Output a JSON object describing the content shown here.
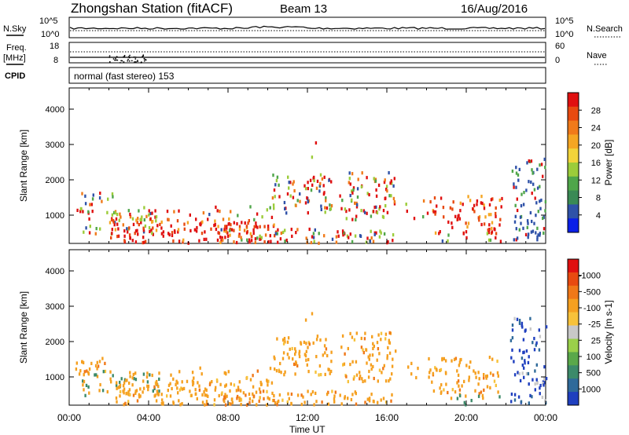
{
  "header": {
    "title": "Zhongshan Station (fitACF)",
    "beam": "Beam 13",
    "date": "16/Aug/2016"
  },
  "strips": {
    "nsky": {
      "label": "N.Sky",
      "ticks_left": [
        "10^5",
        "10^0"
      ]
    },
    "nsearch": {
      "label": "N.Search",
      "ticks_right": [
        "10^5",
        "10^0"
      ]
    },
    "freq": {
      "label_line1": "Freq.",
      "label_line2": "[MHz]",
      "ticks_left": [
        "18",
        "8"
      ]
    },
    "nave": {
      "label": "Nave",
      "ticks_right": [
        "60",
        "0"
      ]
    },
    "cpid": {
      "label": "CPID",
      "text": "normal (fast stereo) 153"
    }
  },
  "chart_data": [
    {
      "type": "heatmap",
      "panel": "power",
      "ylabel": "Slant Range [km]",
      "xlabel": "",
      "ylim": [
        200,
        4600
      ],
      "y_ticks": [
        1000,
        2000,
        3000,
        4000
      ],
      "colorbar_label": "Power [dB]",
      "colorbar_ticks": [
        "4",
        "8",
        "12",
        "16",
        "20",
        "24",
        "28"
      ],
      "colorbar_colors": [
        "#0a1fe8",
        "#2f52a8",
        "#3a8a55",
        "#4fa64a",
        "#9ccc3a",
        "#f2d43a",
        "#f5a623",
        "#f07a1a",
        "#e84a10",
        "#e01010"
      ],
      "x_range_hours": [
        0,
        24
      ]
    },
    {
      "type": "heatmap",
      "panel": "velocity",
      "ylabel": "Slant Range [km]",
      "xlabel": "Time UT",
      "ylim": [
        200,
        4600
      ],
      "y_ticks": [
        1000,
        2000,
        3000,
        4000
      ],
      "colorbar_label": "Velocity [m s-1]",
      "colorbar_ticks": [
        "1000",
        "500",
        "100",
        "25",
        "-25",
        "-100",
        "-500",
        "-1000"
      ],
      "colorbar_colors": [
        "#1f3fbf",
        "#2f6a9a",
        "#3c8a6a",
        "#5aa84a",
        "#9ad04a",
        "#c8c8c8",
        "#f7c23a",
        "#f5a020",
        "#f07818",
        "#e84a10",
        "#e01010"
      ],
      "x_ticks": [
        "00:00",
        "04:00",
        "08:00",
        "12:00",
        "16:00",
        "20:00",
        "00:00"
      ],
      "x_range_hours": [
        0,
        24
      ]
    }
  ]
}
